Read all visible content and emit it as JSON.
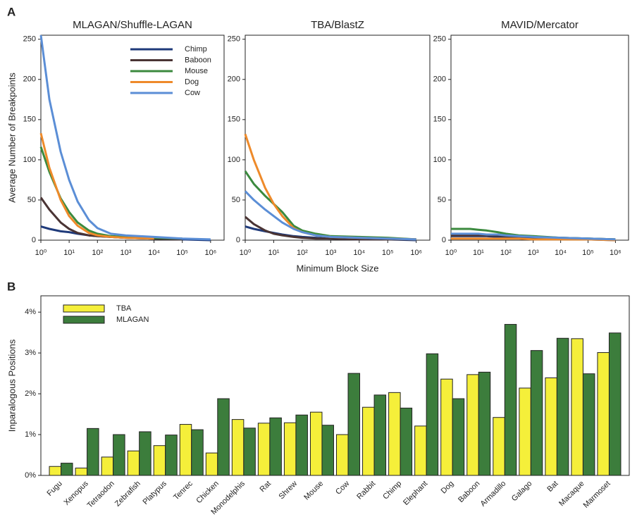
{
  "panel_labels": [
    "A",
    "B"
  ],
  "chart_data": [
    {
      "type": "line",
      "title": "MLAGAN/Shuffle-LAGAN",
      "ylabel": "Average Number of Breakpoints",
      "log_x": true,
      "legend": "upper right",
      "x": [
        1,
        2,
        5,
        10,
        20,
        50,
        100,
        300,
        1000,
        10000,
        100000,
        1000000
      ],
      "xlim": [
        1,
        3000000
      ],
      "xticks": [
        {
          "value": 1,
          "label": "10⁰"
        },
        {
          "value": 10,
          "label": "10¹"
        },
        {
          "value": 100,
          "label": "10²"
        },
        {
          "value": 1000,
          "label": "10³"
        },
        {
          "value": 10000,
          "label": "10⁴"
        },
        {
          "value": 100000,
          "label": "10⁵"
        },
        {
          "value": 1000000,
          "label": "10⁶"
        }
      ],
      "ylim": [
        0,
        255
      ],
      "yticks": [
        0,
        50,
        100,
        150,
        200,
        250
      ],
      "series": [
        {
          "name": "Chimp",
          "color": "#1f3a7a",
          "values": [
            17,
            14,
            11,
            10,
            8,
            6,
            5,
            4,
            3,
            2,
            1,
            0
          ]
        },
        {
          "name": "Baboon",
          "color": "#4a3434",
          "values": [
            53,
            38,
            22,
            14,
            9,
            6,
            5,
            4,
            3,
            2,
            1,
            null
          ]
        },
        {
          "name": "Mouse",
          "color": "#3b8a3e",
          "values": [
            116,
            85,
            52,
            35,
            22,
            12,
            8,
            5,
            4,
            3,
            2,
            null
          ]
        },
        {
          "name": "Dog",
          "color": "#ee8a2a",
          "values": [
            133,
            90,
            50,
            30,
            18,
            9,
            6,
            4,
            3,
            2,
            null,
            null
          ]
        },
        {
          "name": "Cow",
          "color": "#5b8ed6",
          "values": [
            255,
            175,
            110,
            75,
            48,
            25,
            15,
            8,
            6,
            4,
            2,
            1
          ]
        }
      ]
    },
    {
      "type": "line",
      "title": "TBA/BlastZ",
      "xlabel": "Minimum Block Size",
      "log_x": true,
      "x": [
        1,
        2,
        5,
        10,
        20,
        50,
        100,
        300,
        1000,
        10000,
        100000,
        1000000
      ],
      "xlim": [
        1,
        3000000
      ],
      "xticks": [
        {
          "value": 1,
          "label": "10⁰"
        },
        {
          "value": 10,
          "label": "10¹"
        },
        {
          "value": 100,
          "label": "10²"
        },
        {
          "value": 1000,
          "label": "10³"
        },
        {
          "value": 10000,
          "label": "10⁴"
        },
        {
          "value": 100000,
          "label": "10⁵"
        },
        {
          "value": 1000000,
          "label": "10⁶"
        }
      ],
      "ylim": [
        0,
        255
      ],
      "yticks": [
        0,
        50,
        100,
        150,
        200,
        250
      ],
      "series": [
        {
          "name": "Chimp",
          "color": "#1f3a7a",
          "values": [
            17,
            14,
            11,
            9,
            7,
            5,
            4,
            3,
            2,
            1,
            1,
            0
          ]
        },
        {
          "name": "Baboon",
          "color": "#4a3434",
          "values": [
            29,
            20,
            12,
            8,
            6,
            4,
            3,
            2,
            2,
            1,
            1,
            1
          ]
        },
        {
          "name": "Mouse",
          "color": "#3b8a3e",
          "values": [
            86,
            70,
            55,
            45,
            35,
            18,
            12,
            8,
            5,
            4,
            3,
            1
          ]
        },
        {
          "name": "Dog",
          "color": "#ee8a2a",
          "values": [
            132,
            100,
            65,
            45,
            30,
            15,
            10,
            6,
            4,
            3,
            2,
            1
          ]
        },
        {
          "name": "Cow",
          "color": "#5b8ed6",
          "values": [
            61,
            50,
            38,
            30,
            22,
            14,
            10,
            6,
            4,
            3,
            2,
            1
          ]
        }
      ]
    },
    {
      "type": "line",
      "title": "MAVID/Mercator",
      "log_x": true,
      "x": [
        1,
        2,
        5,
        10,
        20,
        50,
        100,
        300,
        1000,
        10000,
        100000,
        1000000
      ],
      "xlim": [
        1,
        3000000
      ],
      "xticks": [
        {
          "value": 1,
          "label": "10⁰"
        },
        {
          "value": 10,
          "label": "10¹"
        },
        {
          "value": 100,
          "label": "10²"
        },
        {
          "value": 1000,
          "label": "10³"
        },
        {
          "value": 10000,
          "label": "10⁴"
        },
        {
          "value": 100000,
          "label": "10⁵"
        },
        {
          "value": 1000000,
          "label": "10⁶"
        }
      ],
      "ylim": [
        0,
        255
      ],
      "yticks": [
        0,
        50,
        100,
        150,
        200,
        250
      ],
      "series": [
        {
          "name": "Chimp",
          "color": "#1f3a7a",
          "values": [
            5,
            5,
            5,
            5,
            5,
            4,
            4,
            4,
            3,
            2,
            1,
            0
          ]
        },
        {
          "name": "Baboon",
          "color": "#4a3434",
          "values": [
            6,
            6,
            6,
            6,
            6,
            6,
            5,
            5,
            4,
            3,
            2,
            1
          ]
        },
        {
          "name": "Mouse",
          "color": "#3b8a3e",
          "values": [
            14,
            14,
            14,
            13,
            12,
            10,
            8,
            6,
            5,
            3,
            2,
            1
          ]
        },
        {
          "name": "Dog",
          "color": "#ee8a2a",
          "values": [
            2,
            2,
            2,
            2,
            2,
            2,
            2,
            2,
            1,
            1,
            1,
            0
          ]
        },
        {
          "name": "Cow",
          "color": "#5b8ed6",
          "values": [
            8,
            8,
            8,
            8,
            7,
            7,
            6,
            5,
            4,
            3,
            2,
            1
          ]
        }
      ]
    },
    {
      "type": "bar",
      "ylabel": "Inparalogous Positions",
      "legend": "upper left",
      "categories": [
        "Fugu",
        "Xenopus",
        "Tetraodon",
        "Zebrafish",
        "Platypus",
        "Tenrec",
        "Chicken",
        "Monodelphis",
        "Rat",
        "Shrew",
        "Mouse",
        "Cow",
        "Rabbit",
        "Chimp",
        "Elephant",
        "Dog",
        "Baboon",
        "Armadillo",
        "Galago",
        "Bat",
        "Macaque",
        "Marmoset"
      ],
      "ylim": [
        0,
        4.4
      ],
      "yticks": [
        {
          "value": 0,
          "label": "0%"
        },
        {
          "value": 1,
          "label": "1%"
        },
        {
          "value": 2,
          "label": "2%"
        },
        {
          "value": 3,
          "label": "3%"
        },
        {
          "value": 4,
          "label": "4%"
        }
      ],
      "series": [
        {
          "name": "TBA",
          "color": "#f5ef3a",
          "values": [
            0.22,
            0.18,
            0.45,
            0.6,
            0.73,
            1.25,
            0.55,
            1.37,
            1.28,
            1.29,
            1.55,
            1.0,
            1.67,
            2.03,
            1.21,
            2.36,
            2.47,
            1.42,
            2.14,
            2.39,
            3.35,
            3.01
          ]
        },
        {
          "name": "MLAGAN",
          "color": "#3c7d3c",
          "values": [
            0.3,
            1.15,
            1.0,
            1.07,
            0.99,
            1.12,
            1.88,
            1.16,
            1.41,
            1.48,
            1.23,
            2.5,
            1.97,
            1.65,
            2.98,
            1.88,
            2.53,
            3.7,
            3.06,
            3.36,
            2.49,
            3.49
          ]
        }
      ]
    }
  ]
}
